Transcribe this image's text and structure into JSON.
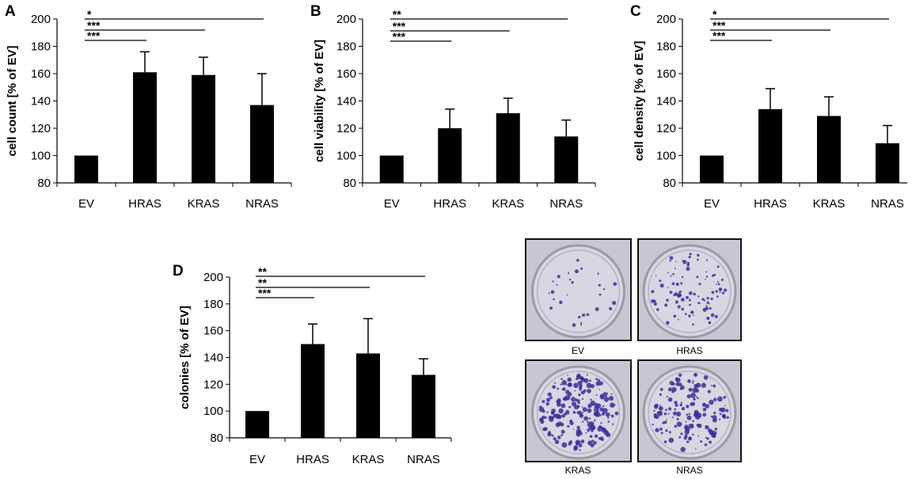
{
  "colors": {
    "bar": "#000000",
    "axis": "#000000",
    "plate_border": "#111111",
    "stain": "#3a2f9a",
    "plate_bg": "#d9d6e2"
  },
  "chart_data": [
    {
      "panel": "A",
      "type": "bar",
      "categories": [
        "EV",
        "HRAS",
        "KRAS",
        "NRAS"
      ],
      "values": [
        100,
        161,
        159,
        137
      ],
      "errors": [
        0,
        15,
        13,
        23
      ],
      "ylabel": "cell count [% of EV]",
      "ylim": [
        80,
        200
      ],
      "yticks": [
        80,
        100,
        120,
        140,
        160,
        180,
        200
      ],
      "significance": [
        {
          "from": 0,
          "to": 1,
          "label": "***"
        },
        {
          "from": 0,
          "to": 2,
          "label": "***"
        },
        {
          "from": 0,
          "to": 3,
          "label": "*"
        }
      ]
    },
    {
      "panel": "B",
      "type": "bar",
      "categories": [
        "EV",
        "HRAS",
        "KRAS",
        "NRAS"
      ],
      "values": [
        100,
        120,
        131,
        114
      ],
      "errors": [
        0,
        14,
        11,
        12
      ],
      "ylabel": "cell viability [% of EV]",
      "ylim": [
        80,
        200
      ],
      "yticks": [
        80,
        100,
        120,
        140,
        160,
        180,
        200
      ],
      "significance": [
        {
          "from": 0,
          "to": 1,
          "label": "***"
        },
        {
          "from": 0,
          "to": 2,
          "label": "***"
        },
        {
          "from": 0,
          "to": 3,
          "label": "**"
        }
      ]
    },
    {
      "panel": "C",
      "type": "bar",
      "categories": [
        "EV",
        "HRAS",
        "KRAS",
        "NRAS"
      ],
      "values": [
        100,
        134,
        129,
        109
      ],
      "errors": [
        0,
        15,
        14,
        13
      ],
      "ylabel": "cell density [% of EV]",
      "ylim": [
        80,
        200
      ],
      "yticks": [
        80,
        100,
        120,
        140,
        160,
        180,
        200
      ],
      "significance": [
        {
          "from": 0,
          "to": 1,
          "label": "***"
        },
        {
          "from": 0,
          "to": 2,
          "label": "***"
        },
        {
          "from": 0,
          "to": 3,
          "label": "*"
        }
      ]
    },
    {
      "panel": "D",
      "type": "bar",
      "categories": [
        "EV",
        "HRAS",
        "KRAS",
        "NRAS"
      ],
      "values": [
        100,
        150,
        143,
        127
      ],
      "errors": [
        0,
        15,
        26,
        12
      ],
      "ylabel": "colonies [% of EV]",
      "ylim": [
        80,
        200
      ],
      "yticks": [
        80,
        100,
        120,
        140,
        160,
        180,
        200
      ],
      "significance": [
        {
          "from": 0,
          "to": 1,
          "label": "***"
        },
        {
          "from": 0,
          "to": 2,
          "label": "**"
        },
        {
          "from": 0,
          "to": 3,
          "label": "**"
        }
      ]
    }
  ],
  "photos": [
    {
      "label": "EV",
      "density": 30
    },
    {
      "label": "HRAS",
      "density": 95
    },
    {
      "label": "KRAS",
      "density": 220
    },
    {
      "label": "NRAS",
      "density": 150
    }
  ]
}
